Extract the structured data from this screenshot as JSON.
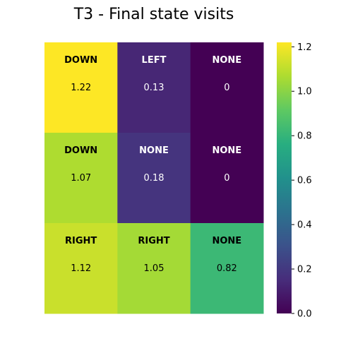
{
  "chart_data": {
    "type": "heatmap",
    "title": "T3 - Final state visits",
    "rows": 3,
    "cols": 3,
    "actions": [
      [
        "DOWN",
        "LEFT",
        "NONE"
      ],
      [
        "DOWN",
        "NONE",
        "NONE"
      ],
      [
        "RIGHT",
        "RIGHT",
        "NONE"
      ]
    ],
    "values": [
      [
        1.22,
        0.13,
        0
      ],
      [
        1.07,
        0.18,
        0
      ],
      [
        1.12,
        1.05,
        0.82
      ]
    ],
    "value_labels": [
      [
        "1.22",
        "0.13",
        "0"
      ],
      [
        "1.07",
        "0.18",
        "0"
      ],
      [
        "1.12",
        "1.05",
        "0.82"
      ]
    ],
    "colorbar": {
      "min": 0.0,
      "max": 1.22,
      "colormap": "viridis",
      "ticks": [
        0.0,
        0.2,
        0.4,
        0.6,
        0.8,
        1.0,
        1.2
      ],
      "tick_labels": [
        "0.0",
        "0.2",
        "0.4",
        "0.6",
        "0.8",
        "1.0",
        "1.2"
      ]
    },
    "xlabel": "",
    "ylabel": ""
  }
}
